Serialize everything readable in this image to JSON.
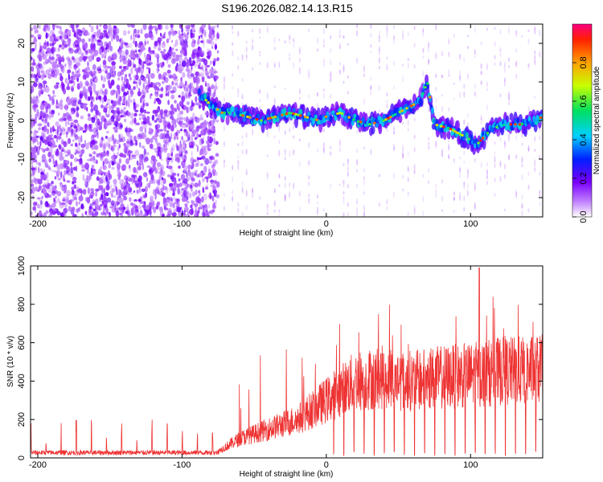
{
  "title": "S196.2026.082.14.13.R15",
  "chart_data": [
    {
      "type": "heatmap",
      "name": "spectrogram",
      "xlabel": "Height of straight line (km)",
      "ylabel": "Frequency (Hz)",
      "xlim": [
        -205,
        150
      ],
      "ylim": [
        -25,
        25
      ],
      "xticks": [
        -200,
        -100,
        0,
        100
      ],
      "yticks": [
        -20,
        -10,
        0,
        10,
        20
      ],
      "colorbar": {
        "label": "Normalized spectral amplitude",
        "range": [
          0,
          1
        ],
        "ticks": [
          0.0,
          0.2,
          0.4,
          0.6,
          0.8
        ],
        "tick_labels": [
          "0.0",
          "0.2",
          "0.4",
          "0.6",
          "0.8"
        ]
      },
      "signal_trace": {
        "x": [
          -88,
          -80,
          -72,
          -65,
          -55,
          -45,
          -35,
          -25,
          -15,
          -5,
          0,
          10,
          20,
          30,
          40,
          50,
          60,
          65,
          70,
          75,
          85,
          95,
          105,
          115,
          125,
          135,
          145,
          150
        ],
        "freq": [
          7,
          4,
          2,
          2,
          1,
          0,
          1,
          2,
          1,
          0,
          1,
          2,
          0,
          -1,
          0,
          2,
          4,
          5,
          10,
          -1,
          -2,
          -4,
          -6,
          -2,
          -1,
          -1,
          0,
          1
        ]
      }
    },
    {
      "type": "line",
      "name": "snr",
      "xlabel": "Height of straight line (km)",
      "ylabel": "SNR (10 * v/v)",
      "xlim": [
        -205,
        150
      ],
      "ylim": [
        0,
        1000
      ],
      "xticks": [
        -200,
        -100,
        0,
        100
      ],
      "yticks": [
        0,
        200,
        400,
        600,
        800,
        1000
      ],
      "color": "#ee3333",
      "envelope": {
        "x": [
          -205,
          -100,
          -75,
          -60,
          -40,
          -20,
          0,
          20,
          40,
          60,
          80,
          100,
          120,
          150
        ],
        "baseline": [
          30,
          30,
          35,
          100,
          150,
          200,
          300,
          400,
          420,
          400,
          420,
          430,
          450,
          460
        ]
      }
    }
  ]
}
